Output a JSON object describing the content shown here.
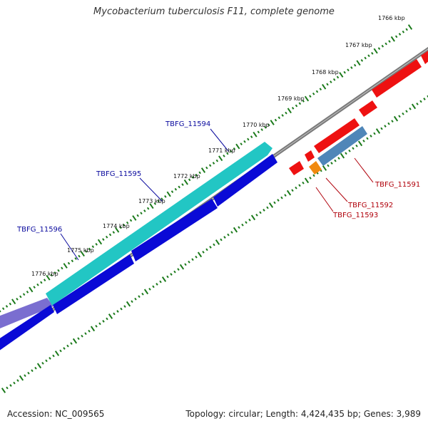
{
  "title": "Mycobacterium tuberculosis F11, complete genome",
  "footer": {
    "accession": "Accession: NC_009565",
    "summary": "Topology: circular; Length: 4,424,435 bp; Genes: 3,989"
  },
  "colors": {
    "backbone": "#7a7a7a",
    "ticks": "#1b7a1b",
    "forward_label": "#0a0a9e",
    "reverse_label": "#b0000a",
    "teal": "#22c6c4",
    "blue": "#0a0ad6",
    "red": "#ee1111",
    "orange": "#f08a10",
    "steel": "#4f86b8",
    "lavender": "#7a6ed0"
  },
  "scale_labels": [
    "1766 kbp",
    "1767 kbp",
    "1768 kbp",
    "1769 kbp",
    "1770 kbp",
    "1771 kbp",
    "1772 kbp",
    "1773 kbp",
    "1774 kbp",
    "1775 kbp",
    "1776 kbp"
  ],
  "gene_labels": {
    "forward": [
      "TBFG_11594",
      "TBFG_11595",
      "TBFG_11596"
    ],
    "reverse": [
      "TBFG_11591",
      "TBFG_11592",
      "TBFG_11593"
    ]
  }
}
